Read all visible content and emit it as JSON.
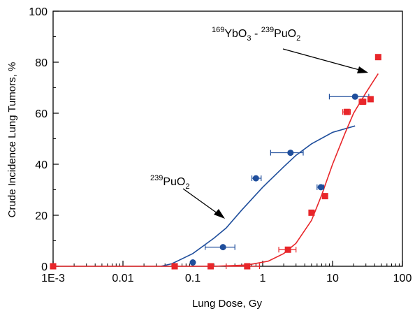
{
  "chart_data": {
    "type": "scatter",
    "xlabel": "Lung Dose, Gy",
    "ylabel": "Crude Incidence Lung Tumors, %",
    "xscale": "log",
    "xlim": [
      0.001,
      100
    ],
    "ylim": [
      0,
      100
    ],
    "xticks": [
      0.001,
      0.01,
      0.1,
      1,
      10,
      100
    ],
    "xtick_labels": [
      "1E-3",
      "0.01",
      "0.1",
      "1",
      "10",
      "100"
    ],
    "yticks": [
      0,
      20,
      40,
      60,
      80,
      100
    ],
    "ytick_labels": [
      "0",
      "20",
      "40",
      "60",
      "80",
      "100"
    ],
    "grid": false,
    "series": [
      {
        "name": "239PuO2",
        "color": "#1f4e9c",
        "marker": "circle",
        "points": [
          {
            "x": 0.1,
            "y": 1.5
          },
          {
            "x": 0.27,
            "y": 7.5,
            "xerr": [
              0.15,
              0.4
            ]
          },
          {
            "x": 0.8,
            "y": 34.5,
            "xerr": [
              0.7,
              0.95
            ]
          },
          {
            "x": 2.5,
            "y": 44.5,
            "xerr": [
              1.3,
              3.8
            ]
          },
          {
            "x": 6.8,
            "y": 31,
            "xerr": [
              6.0,
              7.5
            ]
          },
          {
            "x": 21,
            "y": 66.5,
            "xerr": [
              9,
              33
            ]
          }
        ],
        "fit": [
          {
            "x": 0.035,
            "y": 0
          },
          {
            "x": 0.05,
            "y": 1
          },
          {
            "x": 0.1,
            "y": 5
          },
          {
            "x": 0.2,
            "y": 11
          },
          {
            "x": 0.3,
            "y": 15
          },
          {
            "x": 0.5,
            "y": 22
          },
          {
            "x": 1,
            "y": 31
          },
          {
            "x": 2,
            "y": 39
          },
          {
            "x": 3,
            "y": 43.5
          },
          {
            "x": 5,
            "y": 48
          },
          {
            "x": 10,
            "y": 52.5
          },
          {
            "x": 21,
            "y": 55
          }
        ]
      },
      {
        "name": "169YbO3 - 239PuO2",
        "color": "#e8262a",
        "marker": "square",
        "points": [
          {
            "x": 0.001,
            "y": 0
          },
          {
            "x": 0.055,
            "y": 0
          },
          {
            "x": 0.18,
            "y": 0
          },
          {
            "x": 0.6,
            "y": 0,
            "xerr": [
              0.3,
              0.9
            ]
          },
          {
            "x": 2.3,
            "y": 6.5,
            "xerr": [
              1.7,
              3.0
            ]
          },
          {
            "x": 5.0,
            "y": 21,
            "xerr": [
              4.6,
              5.4
            ]
          },
          {
            "x": 7.8,
            "y": 27.5
          },
          {
            "x": 16,
            "y": 60.5,
            "xerr": [
              14,
              18
            ]
          },
          {
            "x": 27,
            "y": 64.5,
            "xerr": [
              24,
              30
            ]
          },
          {
            "x": 35,
            "y": 65.5
          },
          {
            "x": 45,
            "y": 82
          }
        ],
        "fit": [
          {
            "x": 0.001,
            "y": 0
          },
          {
            "x": 0.2,
            "y": 0
          },
          {
            "x": 0.6,
            "y": 0.5
          },
          {
            "x": 1.2,
            "y": 2
          },
          {
            "x": 2,
            "y": 5
          },
          {
            "x": 3,
            "y": 9
          },
          {
            "x": 5,
            "y": 18
          },
          {
            "x": 7,
            "y": 28
          },
          {
            "x": 10,
            "y": 40
          },
          {
            "x": 15,
            "y": 52
          },
          {
            "x": 20,
            "y": 60
          },
          {
            "x": 30,
            "y": 68
          },
          {
            "x": 45,
            "y": 75.5
          }
        ]
      }
    ],
    "annotations": [
      {
        "id": "pu",
        "pre": "239",
        "base": "PuO",
        "sub": "2",
        "rest": ""
      },
      {
        "id": "yb",
        "pre": "169",
        "base": "YbO",
        "sub": "3",
        "mid": " - ",
        "pre2": "239",
        "base2": "PuO",
        "sub2": "2"
      }
    ]
  }
}
